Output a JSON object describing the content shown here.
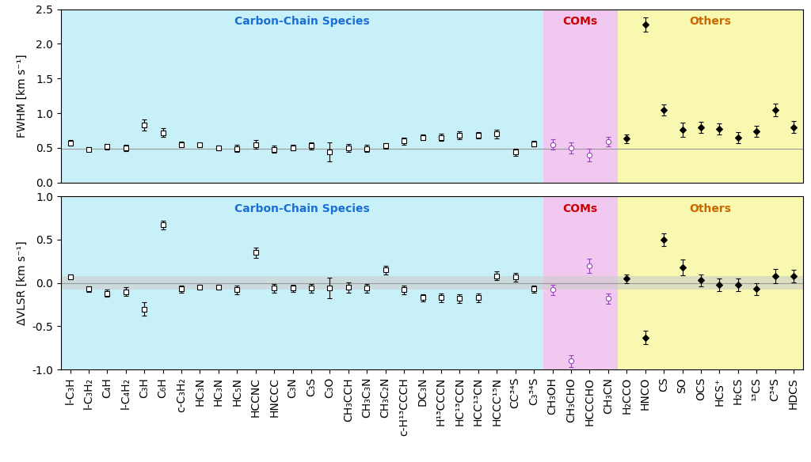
{
  "chart_data": [
    {
      "type": "scatter",
      "ylabel": "FWHM [km s⁻¹]",
      "categories": [
        "l-C₃H",
        "l-C₃H₂",
        "C₄H",
        "l-C₄H₂",
        "C₃H",
        "C₆H",
        "c-C₃H₂",
        "HC₃N",
        "HC₃N",
        "HC₅N",
        "HCCNC",
        "HNCCC",
        "C₃N",
        "C₃S",
        "C₃O",
        "CH₃CCH",
        "CH₃C₃N",
        "CH₃C₂N",
        "c-H¹³CCCH",
        "DC₃N",
        "H¹³CCCN",
        "HC¹³CCN",
        "HCC¹³CN",
        "HCCC¹⁵N",
        "CC³⁴S",
        "C₃³⁴S",
        "CH₃OH",
        "CH₃CHO",
        "HCCCHO",
        "CH₃CN",
        "H₂CCO",
        "HNCO",
        "CS",
        "SO",
        "OCS",
        "HCS⁺",
        "H₂CS",
        "¹³CS",
        "C³⁴S",
        "HDCS"
      ],
      "tick_labels": "y",
      "ylim": [
        0.0,
        2.5
      ],
      "yticks": [
        0.0,
        0.5,
        1.0,
        1.5,
        2.0,
        2.5
      ],
      "reference_line": 0.49,
      "series": [
        {
          "name": "Carbon-Chain Species",
          "color": "black",
          "marker": "square_open",
          "background": "#c8f0f8",
          "label_color": "#1a6ed8",
          "values": [
            0.57,
            0.48,
            0.52,
            0.5,
            0.83,
            0.72,
            0.55,
            0.54,
            0.5,
            0.49,
            0.55,
            0.48,
            0.5,
            0.53,
            0.44,
            0.5,
            0.49,
            0.53,
            0.6,
            0.65,
            0.65,
            0.68,
            0.68,
            0.7,
            0.44,
            0.56,
            null,
            null,
            null,
            null,
            null,
            null,
            null,
            null,
            null,
            null,
            null,
            null,
            null,
            null
          ],
          "errors": [
            0.04,
            0.03,
            0.04,
            0.05,
            0.08,
            0.06,
            0.04,
            0.03,
            0.03,
            0.05,
            0.06,
            0.05,
            0.04,
            0.05,
            0.14,
            0.06,
            0.05,
            0.04,
            0.05,
            0.04,
            0.05,
            0.06,
            0.05,
            0.06,
            0.05,
            0.04,
            null,
            null,
            null,
            null,
            null,
            null,
            null,
            null,
            null,
            null,
            null,
            null,
            null,
            null
          ]
        },
        {
          "name": "COMs",
          "color": "#9944bb",
          "marker": "circle_open",
          "background": "#f0c8f0",
          "label_color": "#cc0000",
          "values": [
            null,
            null,
            null,
            null,
            null,
            null,
            null,
            null,
            null,
            null,
            null,
            null,
            null,
            null,
            null,
            null,
            null,
            null,
            null,
            null,
            null,
            null,
            null,
            null,
            null,
            null,
            0.55,
            0.5,
            0.4,
            0.59,
            null,
            null,
            null,
            null,
            null,
            null,
            null,
            null,
            null,
            null
          ],
          "errors": [
            null,
            null,
            null,
            null,
            null,
            null,
            null,
            null,
            null,
            null,
            null,
            null,
            null,
            null,
            null,
            null,
            null,
            null,
            null,
            null,
            null,
            null,
            null,
            null,
            null,
            null,
            0.07,
            0.08,
            0.09,
            0.07,
            null,
            null,
            null,
            null,
            null,
            null,
            null,
            null,
            null,
            null
          ]
        },
        {
          "name": "Others",
          "color": "black",
          "marker": "diamond",
          "background": "#f8f8b0",
          "label_color": "#cc6600",
          "values": [
            null,
            null,
            null,
            null,
            null,
            null,
            null,
            null,
            null,
            null,
            null,
            null,
            null,
            null,
            null,
            null,
            null,
            null,
            null,
            null,
            null,
            null,
            null,
            null,
            null,
            null,
            null,
            null,
            null,
            null,
            0.63,
            2.28,
            1.05,
            0.76,
            0.8,
            0.77,
            0.65,
            0.74,
            1.05,
            0.8
          ],
          "errors": [
            null,
            null,
            null,
            null,
            null,
            null,
            null,
            null,
            null,
            null,
            null,
            null,
            null,
            null,
            null,
            null,
            null,
            null,
            null,
            null,
            null,
            null,
            null,
            null,
            null,
            null,
            null,
            null,
            null,
            null,
            0.06,
            0.1,
            0.08,
            0.1,
            0.08,
            0.08,
            0.08,
            0.08,
            0.09,
            0.09
          ]
        }
      ]
    },
    {
      "type": "scatter",
      "ylabel": "ΔVLSR [km s⁻¹]",
      "categories": [
        "l-C₃H",
        "l-C₃H₂",
        "C₄H",
        "l-C₄H₂",
        "C₃H",
        "C₆H",
        "c-C₃H₂",
        "HC₃N",
        "HC₃N",
        "HC₅N",
        "HCCNC",
        "HNCCC",
        "C₃N",
        "C₃S",
        "C₃O",
        "CH₃CCH",
        "CH₃C₃N",
        "CH₃C₂N",
        "c-H¹³CCCH",
        "DC₃N",
        "H¹³CCCN",
        "HC¹³CCN",
        "HCC¹³CN",
        "HCCC¹⁵N",
        "CC³⁴S",
        "C₃³⁴S",
        "CH₃OH",
        "CH₃CHO",
        "HCCCHO",
        "CH₃CN",
        "H₂CCO",
        "HNCO",
        "CS",
        "SO",
        "OCS",
        "HCS⁺",
        "H₂CS",
        "¹³CS",
        "C³⁴S",
        "HDCS"
      ],
      "ylim": [
        -1.0,
        1.0
      ],
      "yticks": [
        -1.0,
        -0.5,
        0.0,
        0.5,
        1.0
      ],
      "reference_line": 0,
      "band": [
        -0.08,
        0.08
      ],
      "band_color": "#cccccc",
      "series": [
        {
          "name": "Carbon-Chain Species",
          "color": "black",
          "marker": "square_open",
          "background": "#c8f0f8",
          "label_color": "#1a6ed8",
          "values": [
            0.07,
            -0.07,
            -0.12,
            -0.1,
            -0.3,
            0.67,
            -0.07,
            -0.05,
            -0.05,
            -0.08,
            0.35,
            -0.06,
            -0.06,
            -0.06,
            -0.06,
            -0.05,
            -0.06,
            0.15,
            -0.08,
            -0.17,
            -0.17,
            -0.18,
            -0.17,
            0.08,
            0.07,
            -0.07,
            null,
            null,
            null,
            null,
            null,
            null,
            null,
            null,
            null,
            null,
            null,
            null,
            null,
            null
          ],
          "errors": [
            0.03,
            0.03,
            0.04,
            0.05,
            0.08,
            0.05,
            0.04,
            0.03,
            0.03,
            0.05,
            0.06,
            0.05,
            0.04,
            0.05,
            0.12,
            0.06,
            0.05,
            0.05,
            0.05,
            0.04,
            0.05,
            0.05,
            0.05,
            0.05,
            0.05,
            0.04,
            null,
            null,
            null,
            null,
            null,
            null,
            null,
            null,
            null,
            null,
            null,
            null,
            null,
            null
          ]
        },
        {
          "name": "COMs",
          "color": "#9944bb",
          "marker": "circle_open",
          "background": "#f0c8f0",
          "label_color": "#cc0000",
          "values": [
            null,
            null,
            null,
            null,
            null,
            null,
            null,
            null,
            null,
            null,
            null,
            null,
            null,
            null,
            null,
            null,
            null,
            null,
            null,
            null,
            null,
            null,
            null,
            null,
            null,
            null,
            -0.08,
            -0.9,
            0.2,
            -0.18,
            null,
            null,
            null,
            null,
            null,
            null,
            null,
            null,
            null,
            null
          ],
          "errors": [
            null,
            null,
            null,
            null,
            null,
            null,
            null,
            null,
            null,
            null,
            null,
            null,
            null,
            null,
            null,
            null,
            null,
            null,
            null,
            null,
            null,
            null,
            null,
            null,
            null,
            null,
            0.06,
            0.07,
            0.08,
            0.06,
            null,
            null,
            null,
            null,
            null,
            null,
            null,
            null,
            null,
            null
          ]
        },
        {
          "name": "Others",
          "color": "black",
          "marker": "diamond",
          "background": "#f8f8b0",
          "label_color": "#cc6600",
          "values": [
            null,
            null,
            null,
            null,
            null,
            null,
            null,
            null,
            null,
            null,
            null,
            null,
            null,
            null,
            null,
            null,
            null,
            null,
            null,
            null,
            null,
            null,
            null,
            null,
            null,
            null,
            null,
            null,
            null,
            null,
            0.05,
            -0.63,
            0.5,
            0.18,
            0.03,
            -0.02,
            -0.02,
            -0.07,
            0.08,
            0.08
          ],
          "errors": [
            null,
            null,
            null,
            null,
            null,
            null,
            null,
            null,
            null,
            null,
            null,
            null,
            null,
            null,
            null,
            null,
            null,
            null,
            null,
            null,
            null,
            null,
            null,
            null,
            null,
            null,
            null,
            null,
            null,
            null,
            0.05,
            0.08,
            0.07,
            0.09,
            0.07,
            0.07,
            0.07,
            0.07,
            0.08,
            0.07
          ]
        }
      ]
    }
  ]
}
